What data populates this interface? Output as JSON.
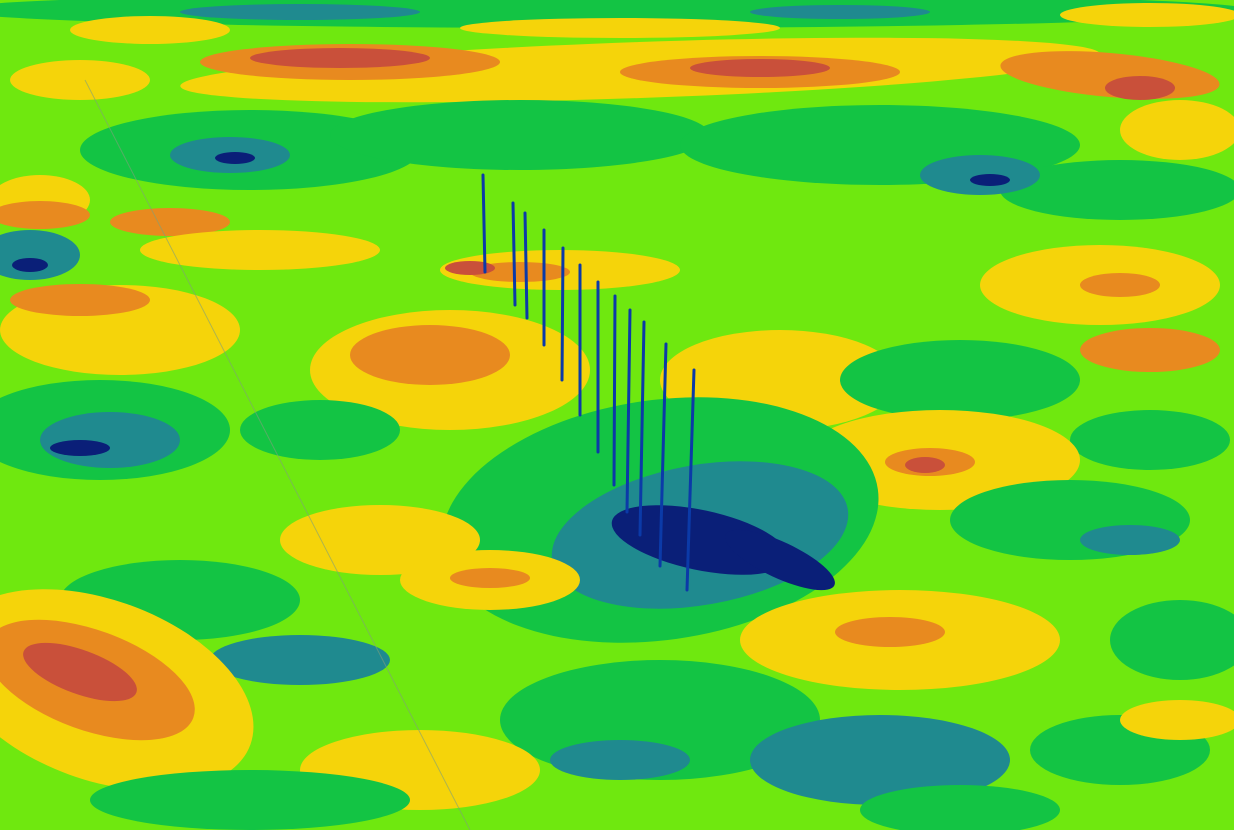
{
  "scene": {
    "type": "3d-terrain-elevation-view",
    "palette": {
      "deep": "#0a1f78",
      "low": "#1f8a8f",
      "mid_low": "#13c444",
      "mid": "#6fe80f",
      "mid_high": "#f5d40a",
      "high": "#e88a1f",
      "peak": "#c9503a"
    },
    "marker_color": "#0b3aa8",
    "markers": {
      "count": 12,
      "type": "vertical-survey-lines"
    }
  }
}
